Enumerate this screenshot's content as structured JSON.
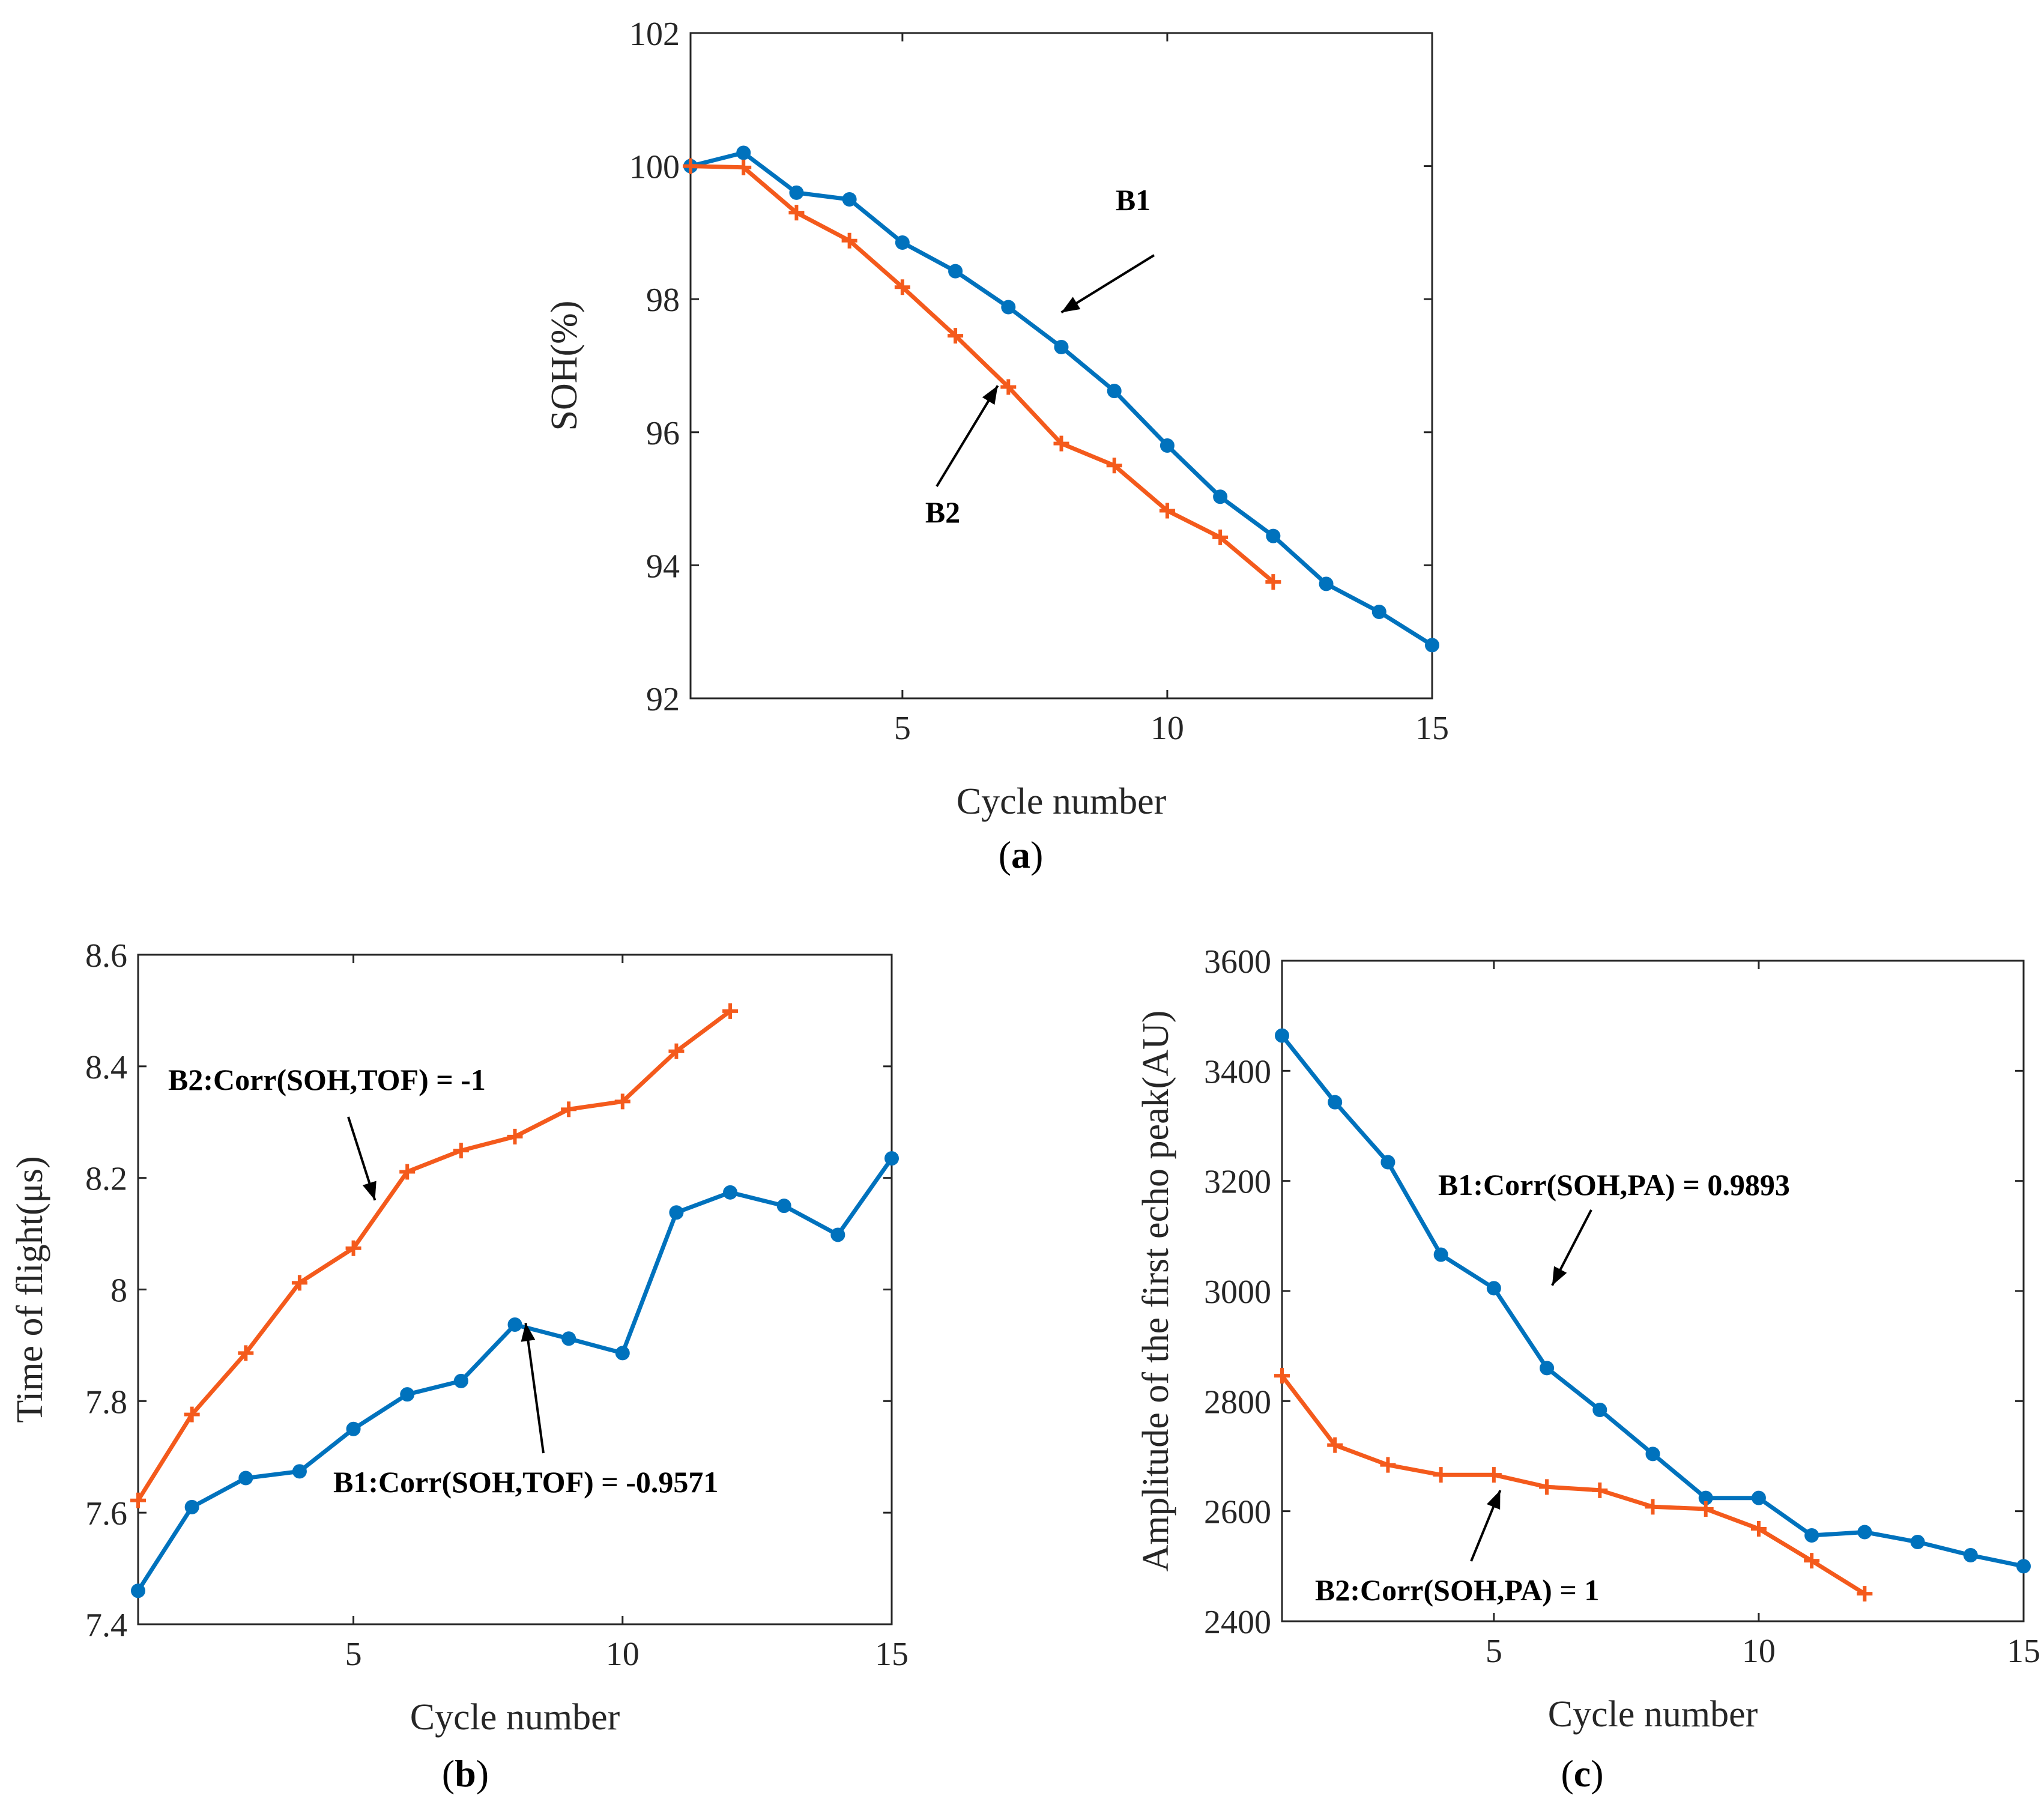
{
  "colors": {
    "B1": "#0072BD",
    "B2": "#F45A1C"
  },
  "chart_data": [
    {
      "id": "a",
      "type": "line",
      "caption": "a",
      "xlabel": "Cycle number",
      "ylabel": "SOH(%)",
      "xlim": [
        1,
        15
      ],
      "ylim": [
        92,
        102
      ],
      "xticks": [
        5,
        10,
        15
      ],
      "yticks": [
        92,
        94,
        96,
        98,
        100,
        102
      ],
      "series": [
        {
          "name": "B1",
          "marker": "circle",
          "x": [
            1,
            2,
            3,
            4,
            5,
            6,
            7,
            8,
            9,
            10,
            11,
            12,
            13,
            14,
            15
          ],
          "y": [
            100,
            100.2,
            99.6,
            99.5,
            98.85,
            98.42,
            97.88,
            97.28,
            96.62,
            95.8,
            95.03,
            94.44,
            93.72,
            93.3,
            92.8
          ]
        },
        {
          "name": "B2",
          "marker": "plus",
          "x": [
            1,
            2,
            3,
            4,
            5,
            6,
            7,
            8,
            9,
            10,
            11,
            12
          ],
          "y": [
            100,
            99.98,
            99.3,
            98.88,
            98.18,
            97.45,
            96.68,
            95.83,
            95.5,
            94.82,
            94.42,
            93.75
          ]
        }
      ],
      "annotations": [
        {
          "text": "B1",
          "point": [
            8,
            97.8
          ]
        },
        {
          "text": "B2",
          "point": [
            6.8,
            96.7
          ]
        }
      ]
    },
    {
      "id": "b",
      "type": "line",
      "caption": "b",
      "xlabel": "Cycle number",
      "ylabel": "Time of flight(μs)",
      "xlim": [
        1,
        15
      ],
      "ylim": [
        7.4,
        8.6
      ],
      "xticks": [
        5,
        10,
        15
      ],
      "yticks": [
        7.4,
        7.6,
        7.8,
        8,
        8.2,
        8.4,
        8.6
      ],
      "ytick_labels": [
        "7.4",
        "7.6",
        "7.8",
        "8",
        "8.2",
        "8.4",
        "8.6"
      ],
      "series": [
        {
          "name": "B1",
          "marker": "circle",
          "x": [
            1,
            2,
            3,
            4,
            5,
            6,
            7,
            8,
            9,
            10,
            11,
            12,
            13,
            14,
            15
          ],
          "y": [
            7.46,
            7.61,
            7.662,
            7.674,
            7.75,
            7.812,
            7.836,
            7.937,
            7.912,
            7.886,
            8.138,
            8.174,
            8.15,
            8.098,
            8.235
          ]
        },
        {
          "name": "B2",
          "marker": "plus",
          "x": [
            1,
            2,
            3,
            4,
            5,
            6,
            7,
            8,
            9,
            10,
            11,
            12
          ],
          "y": [
            7.622,
            7.776,
            7.886,
            8.012,
            8.074,
            8.211,
            8.249,
            8.274,
            8.323,
            8.337,
            8.427,
            8.499
          ]
        }
      ],
      "annotations": [
        {
          "text": "B2:Corr(SOH,TOF) = -1",
          "point": [
            5.4,
            8.16
          ]
        },
        {
          "text": "B1:Corr(SOH,TOF) = -0.9571",
          "point": [
            8.2,
            7.94
          ]
        }
      ]
    },
    {
      "id": "c",
      "type": "line",
      "caption": "c",
      "xlabel": "Cycle number",
      "ylabel": "Amplitude of the first echo peak(AU)",
      "xlim": [
        1,
        15
      ],
      "ylim": [
        2400,
        3600
      ],
      "xticks": [
        5,
        10,
        15
      ],
      "yticks": [
        2400,
        2600,
        2800,
        3000,
        3200,
        3400,
        3600
      ],
      "series": [
        {
          "name": "B1",
          "marker": "circle",
          "x": [
            1,
            2,
            3,
            4,
            5,
            6,
            7,
            8,
            9,
            10,
            11,
            12,
            13,
            14,
            15
          ],
          "y": [
            3464,
            3343,
            3234,
            3066,
            3005,
            2860,
            2784,
            2704,
            2624,
            2624,
            2556,
            2562,
            2544,
            2520,
            2500
          ]
        },
        {
          "name": "B2",
          "marker": "plus",
          "x": [
            1,
            2,
            3,
            4,
            5,
            6,
            7,
            8,
            9,
            10,
            11,
            12
          ],
          "y": [
            2846,
            2720,
            2684,
            2666,
            2666,
            2644,
            2638,
            2608,
            2604,
            2568,
            2510,
            2450
          ]
        }
      ],
      "annotations": [
        {
          "text": "B1:Corr(SOH,PA) = 0.9893",
          "point": [
            6.1,
            3010
          ]
        },
        {
          "text": "B2:Corr(SOH,PA) = 1",
          "point": [
            5.12,
            2638
          ]
        }
      ]
    }
  ]
}
